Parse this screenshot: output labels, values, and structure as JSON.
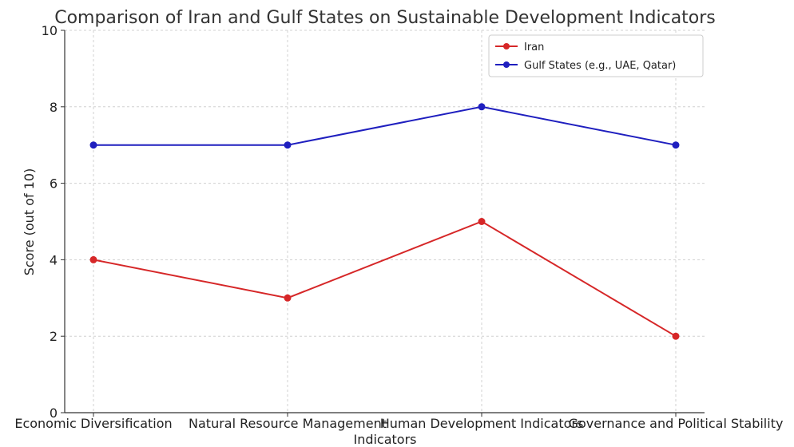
{
  "chart_data": {
    "type": "line",
    "title": "Comparison of Iran and Gulf States on Sustainable Development Indicators",
    "xlabel": "Indicators",
    "ylabel": "Score (out of 10)",
    "categories": [
      "Economic Diversification",
      "Natural Resource Management",
      "Human Development Indicators",
      "Governance and Political Stability"
    ],
    "ylim": [
      0,
      10
    ],
    "yticks": [
      "0",
      "2",
      "4",
      "6",
      "8",
      "10"
    ],
    "grid": true,
    "legend_position": "top-right",
    "series": [
      {
        "name": "Iran",
        "color": "#d62728",
        "values": [
          4,
          3,
          5,
          2
        ]
      },
      {
        "name": "Gulf States (e.g., UAE, Qatar)",
        "color": "#1f1fbf",
        "values": [
          7,
          7,
          8,
          7
        ]
      }
    ]
  }
}
